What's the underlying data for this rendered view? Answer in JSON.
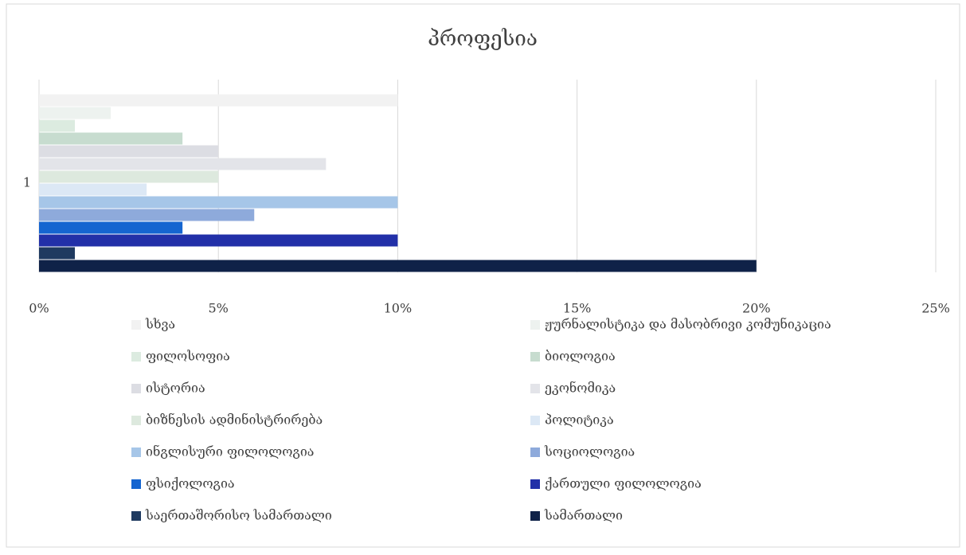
{
  "chart_data": {
    "type": "bar",
    "orientation": "horizontal",
    "title": "პროფესია",
    "categories": [
      "1"
    ],
    "series": [
      {
        "name": "სხვა",
        "color": "#f2f2f2",
        "values": [
          10
        ]
      },
      {
        "name": "ჟურნალისტიკა და მასობრივი კომუნიკაცია",
        "color": "#edf2ef",
        "values": [
          2
        ]
      },
      {
        "name": "ფილოსოფია",
        "color": "#dcebe0",
        "values": [
          1
        ]
      },
      {
        "name": "ბიოლოგია",
        "color": "#c7dccf",
        "values": [
          4
        ]
      },
      {
        "name": "ისტორია",
        "color": "#dcdde3",
        "values": [
          5
        ]
      },
      {
        "name": "ეკონომიკა",
        "color": "#e3e4e9",
        "values": [
          8
        ]
      },
      {
        "name": "ბიზნესის ადმინისტრირება",
        "color": "#dde9de",
        "values": [
          5
        ]
      },
      {
        "name": "პოლიტიკა",
        "color": "#dce8f5",
        "values": [
          3
        ]
      },
      {
        "name": "ინგლისური ფილოლოგია",
        "color": "#a6c6e8",
        "values": [
          10
        ]
      },
      {
        "name": "სოციოლოგია",
        "color": "#8eaadb",
        "values": [
          6
        ]
      },
      {
        "name": "ფსიქოლოგია",
        "color": "#1565d0",
        "values": [
          4
        ]
      },
      {
        "name": "ქართული ფილოლოგია",
        "color": "#2230a8",
        "values": [
          10
        ]
      },
      {
        "name": "საერთაშორისო სამართალი",
        "color": "#1f3a60",
        "values": [
          1
        ]
      },
      {
        "name": "სამართალი",
        "color": "#0f2248",
        "values": [
          20
        ]
      }
    ],
    "xlim": [
      0,
      25
    ],
    "xticks": [
      {
        "value": 0,
        "label": "0%"
      },
      {
        "value": 5,
        "label": "5%"
      },
      {
        "value": 10,
        "label": "10%"
      },
      {
        "value": 15,
        "label": "15%"
      },
      {
        "value": 20,
        "label": "20%"
      },
      {
        "value": 25,
        "label": "25%"
      }
    ],
    "grid": true,
    "legend": "bottom"
  }
}
